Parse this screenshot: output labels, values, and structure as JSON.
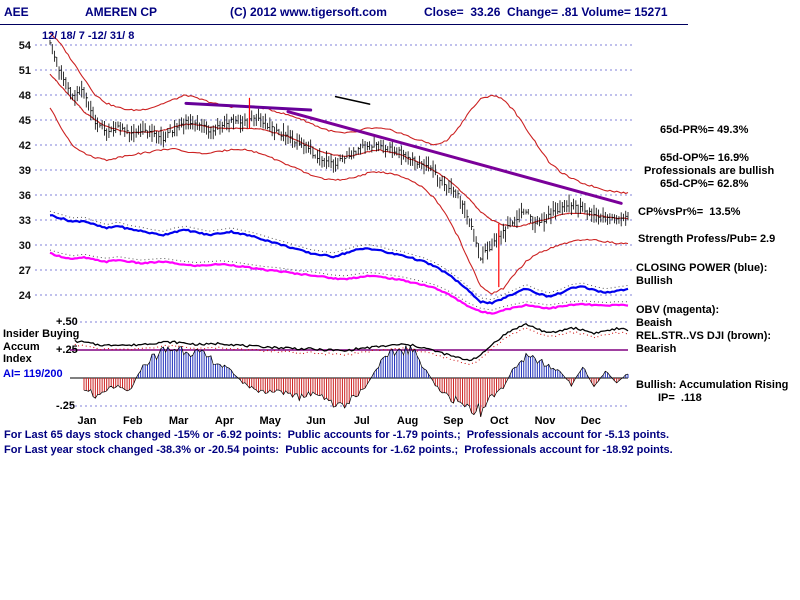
{
  "window": {
    "symbol": "AEE",
    "name": "AMEREN CP",
    "copyright": "(C) 2012 www.tigersoft.com",
    "stats": "Close=  33.26  Change= .81 Volume= 15271",
    "date_range": "12/ 18/ 7 -12/ 31/ 8"
  },
  "right_panel": {
    "pr": "65d-PR%= 49.3%",
    "op": "65d-OP%= 16.9%",
    "prof": "Professionals are bullish",
    "cp65": "65d-CP%= 62.8%",
    "cpvspr": "CP%vsPr%=  13.5%",
    "strength": "Strength Profess/Pub= 2.9",
    "cp_title": "CLOSING POWER (blue):",
    "cp_state": "Bullish",
    "obv_title": "OBV (magenta):",
    "obv_state": "Beaish",
    "rs_title": "REL.STR..VS DJI (brown):",
    "rs_state": "Bearish",
    "accum_note": "Bullish: Accumulation Rising",
    "ip": "IP=  .118"
  },
  "left_panel": {
    "insider": "Insider Buying",
    "accum": "Accum",
    "index": "Index",
    "ai": "AI= 119/200",
    "plus50": "+.50",
    "plus25": "+.25",
    "minus25": "-.25"
  },
  "footer": {
    "line1": "For Last 65 days stock changed -15% or -6.92 points:  Public accounts for -1.79 points.;  Professionals account for -5.13 points.",
    "line2": "For Last year stock changed -38.3% or -20.54 points:  Public accounts for -1.62 points.;  Professionals account for -18.92 points."
  },
  "chart_data": {
    "type": "ohlc-with-indicators",
    "title": "AMEREN CP (AEE) daily chart 12/18/7 - 12/31/8",
    "x_axis": {
      "months": [
        "Jan",
        "Feb",
        "Mar",
        "Apr",
        "May",
        "Jun",
        "Jul",
        "Aug",
        "Sep",
        "Oct",
        "Nov",
        "Dec"
      ]
    },
    "price_axis": {
      "ticks": [
        54,
        51,
        48,
        45,
        42,
        39,
        36,
        33,
        30,
        27,
        24
      ]
    },
    "indicator_axis": {
      "ticks": [
        {
          "label": "+.50",
          "value": 0.5
        },
        {
          "label": "+.25",
          "value": 0.25
        },
        {
          "label": "-.25",
          "value": -0.25
        }
      ],
      "zero_baseline": 0
    },
    "series": {
      "close": [
        54.0,
        50.5,
        47.8,
        48.5,
        44.8,
        43.5,
        44.3,
        43.2,
        43.8,
        43.3,
        42.8,
        44.0,
        44.8,
        44.5,
        43.8,
        44.2,
        45.0,
        44.6,
        45.4,
        44.6,
        43.6,
        43.0,
        42.2,
        41.2,
        40.2,
        39.6,
        40.4,
        41.4,
        42.0,
        42.0,
        41.6,
        41.0,
        40.2,
        39.6,
        38.6,
        37.2,
        36.0,
        33.0,
        28.5,
        30.0,
        31.5,
        33.0,
        34.2,
        32.6,
        33.4,
        34.4,
        35.0,
        34.2,
        33.6,
        33.0,
        33.2,
        33.3
      ],
      "band_upper": [
        55.5,
        54.0,
        52.0,
        50.0,
        48.0,
        47.0,
        46.5,
        46.2,
        46.2,
        46.5,
        47.0,
        47.5,
        48.0,
        47.6,
        47.2,
        46.8,
        46.6,
        46.6,
        46.6,
        46.4,
        46.0,
        45.6,
        45.2,
        44.6,
        44.0,
        43.6,
        43.4,
        43.6,
        44.0,
        44.0,
        43.8,
        43.4,
        42.8,
        42.4,
        42.0,
        42.5,
        44.0,
        46.0,
        47.5,
        48.0,
        47.5,
        46.0,
        44.0,
        42.0,
        40.0,
        38.8,
        38.0,
        37.4,
        37.0,
        36.6,
        36.4,
        36.2
      ],
      "band_mid": [
        50.5,
        49.0,
        47.5,
        46.0,
        45.0,
        44.2,
        43.8,
        43.5,
        43.5,
        43.6,
        43.8,
        44.2,
        44.5,
        44.4,
        44.2,
        44.0,
        44.0,
        44.0,
        44.0,
        43.8,
        43.4,
        43.0,
        42.4,
        41.8,
        41.2,
        40.8,
        40.6,
        40.8,
        41.2,
        41.4,
        41.2,
        40.8,
        40.2,
        39.6,
        38.8,
        38.0,
        36.8,
        35.5,
        34.0,
        33.0,
        32.4,
        32.2,
        32.4,
        32.8,
        33.2,
        33.6,
        33.8,
        33.8,
        33.6,
        33.4,
        33.2,
        33.2
      ],
      "band_lower": [
        46.5,
        44.0,
        42.0,
        41.0,
        40.5,
        40.2,
        40.5,
        40.8,
        41.0,
        41.2,
        41.5,
        41.5,
        41.2,
        41.0,
        41.0,
        41.2,
        41.5,
        41.5,
        41.2,
        40.8,
        40.2,
        39.6,
        39.0,
        38.4,
        38.0,
        37.8,
        37.8,
        38.2,
        38.6,
        38.8,
        38.6,
        38.2,
        37.6,
        36.8,
        35.5,
        33.5,
        31.0,
        28.0,
        25.0,
        24.2,
        24.8,
        26.5,
        28.0,
        29.0,
        29.5,
        30.0,
        30.4,
        30.6,
        30.6,
        30.4,
        30.2,
        30.2
      ],
      "closing_power": [
        33.6,
        33.2,
        32.8,
        32.9,
        32.4,
        32.0,
        32.3,
        31.9,
        31.7,
        31.4,
        31.2,
        31.6,
        31.8,
        31.5,
        31.2,
        31.4,
        31.6,
        31.3,
        31.0,
        30.6,
        30.2,
        29.8,
        29.4,
        29.0,
        28.8,
        28.6,
        29.0,
        29.4,
        29.6,
        29.4,
        29.0,
        28.8,
        28.4,
        28.0,
        27.4,
        26.6,
        25.6,
        24.4,
        23.2,
        23.0,
        23.6,
        24.2,
        24.8,
        24.2,
        23.8,
        24.2,
        24.8,
        25.0,
        24.6,
        24.3,
        24.5,
        24.7
      ],
      "obv": [
        29.0,
        28.6,
        28.3,
        28.5,
        28.2,
        28.0,
        28.2,
        28.0,
        27.8,
        27.9,
        28.0,
        27.8,
        27.6,
        27.5,
        27.6,
        27.7,
        27.6,
        27.4,
        27.2,
        27.0,
        26.9,
        26.7,
        26.5,
        26.4,
        26.2,
        26.0,
        25.9,
        26.1,
        26.3,
        26.2,
        26.0,
        25.8,
        25.5,
        25.2,
        24.8,
        24.2,
        23.4,
        22.6,
        22.0,
        21.8,
        22.2,
        22.5,
        22.8,
        22.6,
        22.4,
        22.6,
        22.8,
        22.9,
        22.8,
        22.7,
        22.8,
        22.8
      ],
      "accum_index": [
        -0.14,
        -0.2,
        -0.16,
        -0.1,
        -0.15,
        -0.1,
        -0.06,
        -0.12,
        0.08,
        0.18,
        0.24,
        0.26,
        0.26,
        0.22,
        0.18,
        0.12,
        0.06,
        -0.04,
        -0.1,
        -0.14,
        -0.1,
        -0.14,
        -0.18,
        -0.14,
        -0.18,
        -0.22,
        -0.26,
        -0.16,
        -0.06,
        0.12,
        0.2,
        0.26,
        0.24,
        0.1,
        -0.06,
        -0.16,
        -0.22,
        -0.26,
        -0.3,
        -0.18,
        -0.08,
        0.1,
        0.18,
        0.16,
        0.1,
        0.06,
        -0.06,
        0.1,
        -0.08,
        0.06,
        -0.04,
        0.04
      ],
      "insider": [
        0.4,
        0.36,
        0.33,
        0.32,
        0.3,
        0.29,
        0.3,
        0.29,
        0.3,
        0.31,
        0.32,
        0.32,
        0.31,
        0.3,
        0.3,
        0.31,
        0.3,
        0.29,
        0.28,
        0.28,
        0.27,
        0.27,
        0.26,
        0.26,
        0.25,
        0.25,
        0.24,
        0.26,
        0.27,
        0.28,
        0.29,
        0.3,
        0.29,
        0.27,
        0.24,
        0.21,
        0.18,
        0.16,
        0.2,
        0.3,
        0.38,
        0.44,
        0.48,
        0.44,
        0.4,
        0.42,
        0.45,
        0.43,
        0.4,
        0.42,
        0.44,
        0.43
      ]
    },
    "annotations": [
      {
        "name": "trendline-short",
        "x1_day": 60,
        "price1": 47.0,
        "x2_day": 115,
        "price2": 46.2,
        "color": "#660099",
        "width": 3
      },
      {
        "name": "trendline-main",
        "x1_day": 105,
        "price1": 46.0,
        "x2_day": 252,
        "price2": 35.0,
        "color": "#7a0099",
        "width": 3
      },
      {
        "name": "black-segment",
        "x1_day": 126,
        "price1": 47.8,
        "x2_day": 141,
        "price2": 46.9,
        "color": "#000000",
        "width": 1.5
      },
      {
        "name": "red-spike-up",
        "x1_day": 88,
        "price1": 44.0,
        "x2_day": 88,
        "price2": 47.6,
        "color": "#ff0000",
        "width": 1.2
      },
      {
        "name": "red-spike-down",
        "x1_day": 198,
        "price1": 32.5,
        "x2_day": 198,
        "price2": 25.0,
        "color": "#ff0000",
        "width": 1.2
      }
    ],
    "legend": {
      "closing_power_color": "#0000ee",
      "obv_color": "#ff00ff",
      "band_color": "#cc2222",
      "trend_color": "#7a0099",
      "grid_color": "#5959cc",
      "accum_pos_color": "#2233bb",
      "accum_neg_color": "#cc2222",
      "insider_color": "#000000",
      "header_color": "#000080"
    }
  }
}
